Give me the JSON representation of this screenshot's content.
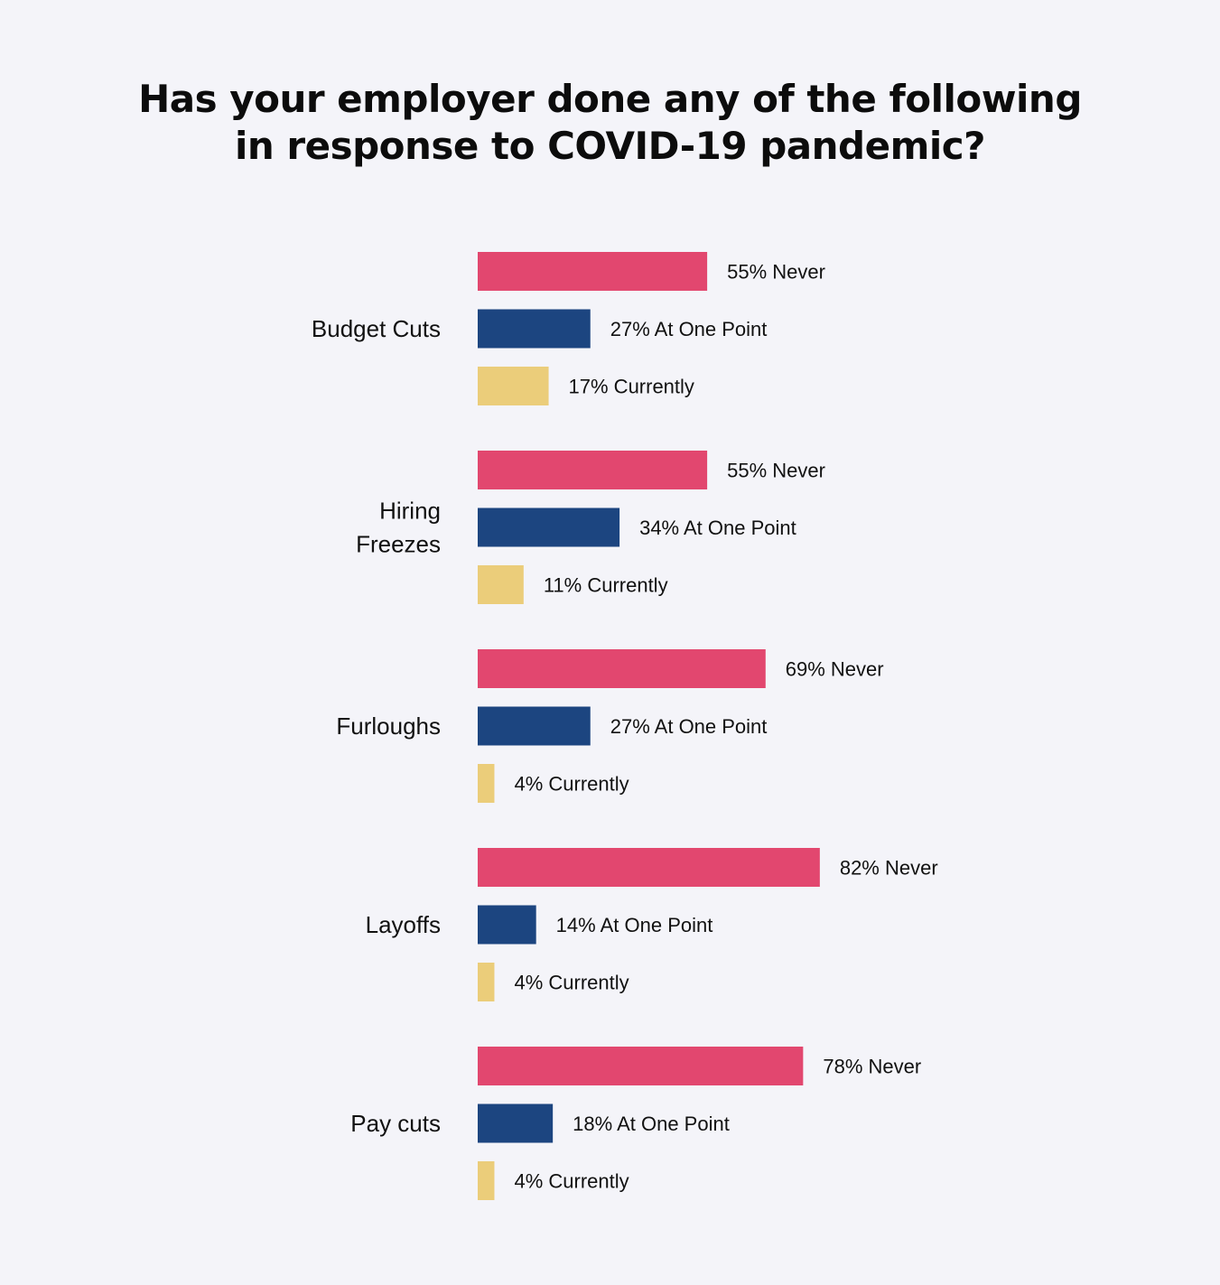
{
  "chart_data": {
    "type": "bar",
    "orientation": "horizontal",
    "title_lines": [
      "Has your employer done any of the following",
      "in response to COVID-19 pandemic?"
    ],
    "categories": [
      "Budget Cuts",
      "Hiring Freezes",
      "Furloughs",
      "Layoffs",
      "Pay cuts"
    ],
    "category_labels": [
      [
        "Budget Cuts"
      ],
      [
        "Hiring",
        "Freezes"
      ],
      [
        "Furloughs"
      ],
      [
        "Layoffs"
      ],
      [
        "Pay cuts"
      ]
    ],
    "series": [
      {
        "name": "Never",
        "color": "#e2476f",
        "values": [
          55,
          55,
          69,
          82,
          78
        ],
        "labels": [
          "55% Never",
          "55% Never",
          "69% Never",
          "82% Never",
          "78% Never"
        ]
      },
      {
        "name": "At One Point",
        "color": "#1c4580",
        "values": [
          27,
          34,
          27,
          14,
          18
        ],
        "labels": [
          "27% At One Point",
          "34% At One Point",
          "27% At One Point",
          "14% At One Point",
          "18% At One Point"
        ]
      },
      {
        "name": "Currently",
        "color": "#ebcd7a",
        "values": [
          17,
          11,
          4,
          4,
          4
        ],
        "labels": [
          "17% Currently",
          "11% Currently",
          "4% Currently",
          "4% Currently",
          "4% Currently"
        ]
      }
    ],
    "unit": "%",
    "xlim": [
      0,
      100
    ],
    "grid": false,
    "legend": "none"
  }
}
